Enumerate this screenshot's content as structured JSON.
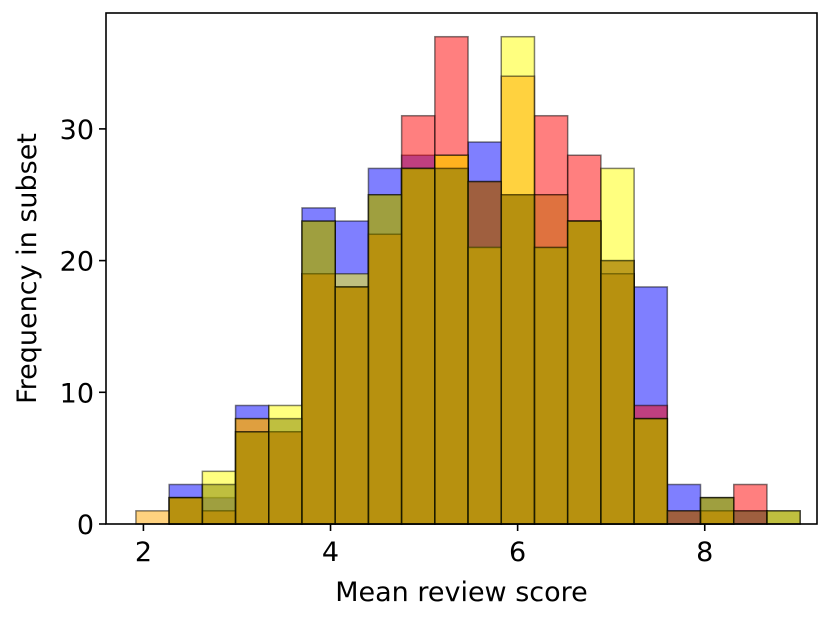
{
  "chart_data": {
    "type": "histogram",
    "title": "",
    "xlabel": "Mean review score",
    "ylabel": "Frequency in subset",
    "xlim": [
      1.6,
      9.2
    ],
    "ylim": [
      0,
      38.8
    ],
    "grid": false,
    "bin_edges": [
      1.92,
      2.275,
      2.63,
      2.985,
      3.34,
      3.695,
      4.05,
      4.405,
      4.76,
      5.115,
      5.47,
      5.825,
      6.18,
      6.535,
      6.89,
      7.245,
      7.6,
      7.955,
      8.31,
      8.665,
      9.02
    ],
    "x_ticks": [
      2,
      4,
      6,
      8
    ],
    "x_tick_labels": [
      "2",
      "4",
      "6",
      "8"
    ],
    "y_ticks": [
      0,
      10,
      20,
      30
    ],
    "y_tick_labels": [
      "0",
      "10",
      "20",
      "30"
    ],
    "alpha": 0.5,
    "series": [
      {
        "color": "#0000ff",
        "values": [
          0,
          3,
          2,
          9,
          7,
          24,
          23,
          27,
          28,
          27,
          29,
          25,
          25,
          23,
          19,
          18,
          3,
          2,
          1,
          0
        ]
      },
      {
        "color": "#ff0000",
        "values": [
          0,
          2,
          1,
          8,
          7,
          19,
          18,
          22,
          31,
          37,
          26,
          25,
          31,
          28,
          20,
          9,
          1,
          1,
          3,
          0
        ]
      },
      {
        "color": "#ffff00",
        "values": [
          0,
          2,
          4,
          8,
          9,
          23,
          19,
          25,
          27,
          28,
          21,
          37,
          21,
          23,
          27,
          8,
          0,
          2,
          0,
          1
        ]
      },
      {
        "color": "#ffa500",
        "values": [
          1,
          2,
          1,
          7,
          7,
          19,
          18,
          22,
          27,
          28,
          21,
          34,
          25,
          23,
          19,
          8,
          0,
          1,
          0,
          0
        ]
      },
      {
        "color": "#808000",
        "values": [
          0,
          2,
          3,
          7,
          8,
          23,
          18,
          25,
          27,
          27,
          26,
          25,
          21,
          23,
          20,
          8,
          1,
          2,
          1,
          1
        ]
      }
    ]
  }
}
